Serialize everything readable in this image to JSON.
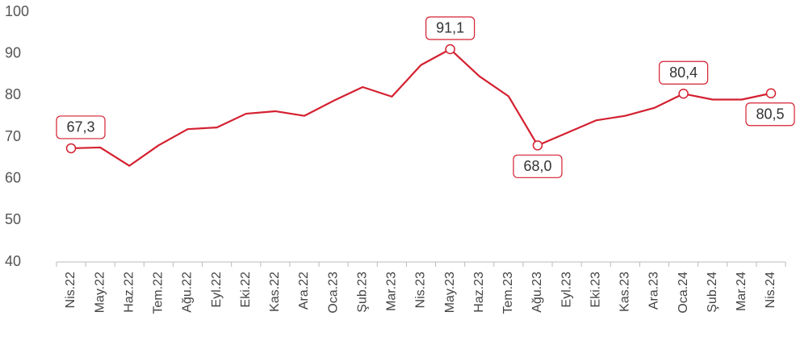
{
  "chart_data": {
    "type": "line",
    "categories": [
      "Nis.22",
      "May.22",
      "Haz.22",
      "Tem.22",
      "Ağu.22",
      "Eyl.22",
      "Eki.22",
      "Kas.22",
      "Ara.22",
      "Oca.23",
      "Şub.23",
      "Mar.23",
      "Nis.23",
      "May.23",
      "Haz.23",
      "Tem.23",
      "Ağu.23",
      "Eyl.23",
      "Eki.23",
      "Kas.23",
      "Ara.23",
      "Oca.24",
      "Şub.24",
      "Mar.24",
      "Nis.24"
    ],
    "values": [
      67.3,
      67.5,
      63.1,
      68.0,
      71.9,
      72.3,
      75.6,
      76.2,
      75.1,
      78.7,
      82.0,
      79.7,
      87.3,
      91.1,
      84.6,
      79.8,
      68.0,
      71.0,
      74.0,
      75.1,
      77.0,
      80.4,
      79.0,
      79.0,
      80.5
    ],
    "value_labels": [
      "67,3",
      null,
      null,
      null,
      null,
      null,
      null,
      null,
      null,
      null,
      null,
      null,
      null,
      "91,1",
      null,
      null,
      "68,0",
      null,
      null,
      null,
      null,
      "80,4",
      null,
      null,
      "80,5"
    ],
    "color": "#d42030",
    "ylim": [
      40,
      100
    ],
    "yticks": [
      40,
      50,
      60,
      70,
      80,
      90,
      100
    ],
    "grid": false
  }
}
